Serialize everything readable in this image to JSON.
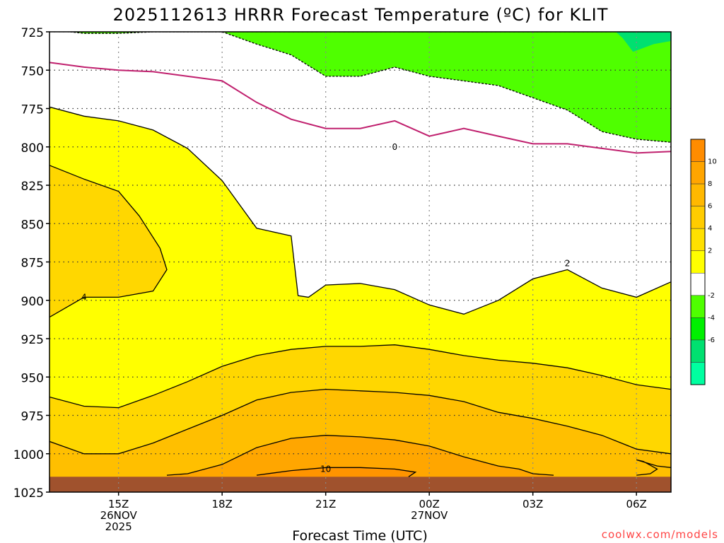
{
  "chart_data": {
    "type": "contour",
    "title": "2025112613 HRRR Forecast Temperature (ºC) for KLIT",
    "xlabel": "Forecast Time (UTC)",
    "ylabel": "",
    "credit": "coolwx.com/models",
    "y_scale": "pressure (hPa), increasing downward",
    "ylim": [
      725,
      1025
    ],
    "xlim_hours_utc": [
      13,
      31
    ],
    "grid": true,
    "y_ticks": [
      "725",
      "750",
      "775",
      "800",
      "825",
      "850",
      "875",
      "900",
      "925",
      "950",
      "975",
      "1000",
      "1025"
    ],
    "x_ticks": [
      {
        "hour": 15,
        "label": "15Z",
        "date": "26NOV",
        "year": "2025"
      },
      {
        "hour": 18,
        "label": "18Z",
        "date": "",
        "year": ""
      },
      {
        "hour": 21,
        "label": "21Z",
        "date": "",
        "year": ""
      },
      {
        "hour": 24,
        "label": "00Z",
        "date": "27NOV",
        "year": ""
      },
      {
        "hour": 27,
        "label": "03Z",
        "date": "",
        "year": ""
      },
      {
        "hour": 30,
        "label": "06Z",
        "date": "",
        "year": ""
      }
    ],
    "colorbar": {
      "labels": [
        "10",
        "8",
        "6",
        "4",
        "2",
        "-2",
        "-4",
        "-6"
      ],
      "bins": [
        {
          "color": "#ff8c00"
        },
        {
          "color": "#ffa500"
        },
        {
          "color": "#ffb800"
        },
        {
          "color": "#ffcc00"
        },
        {
          "color": "#ffe000"
        },
        {
          "color": "#ffff00"
        },
        {
          "color": "#ffffff"
        },
        {
          "color": "#4fff00"
        },
        {
          "color": "#00f000"
        },
        {
          "color": "#00e070"
        },
        {
          "color": "#00ffa0"
        }
      ]
    },
    "contour_labels": [
      {
        "text": "0",
        "hour": 23.0,
        "p": 800
      },
      {
        "text": "2",
        "hour": 28.0,
        "p": 876
      },
      {
        "text": "4",
        "hour": 14.0,
        "p": 898
      },
      {
        "text": "10",
        "hour": 21.0,
        "p": 1010
      }
    ],
    "ground_level_hpa": 1015,
    "contours": [
      {
        "level": 0,
        "style": "magenta",
        "points": [
          [
            13,
            745
          ],
          [
            14,
            748
          ],
          [
            15,
            750
          ],
          [
            16,
            751
          ],
          [
            17,
            754
          ],
          [
            18,
            757
          ],
          [
            19,
            771
          ],
          [
            20,
            782
          ],
          [
            21,
            788
          ],
          [
            22,
            788
          ],
          [
            23,
            783
          ],
          [
            24,
            793
          ],
          [
            25,
            788
          ],
          [
            26,
            793
          ],
          [
            27,
            798
          ],
          [
            28,
            798
          ],
          [
            29,
            801
          ],
          [
            30,
            804
          ],
          [
            31,
            803
          ]
        ]
      },
      {
        "level": -2,
        "style": "dashed",
        "points": [
          [
            13.6,
            725
          ],
          [
            14,
            726
          ],
          [
            15,
            726
          ],
          [
            16,
            725
          ],
          [
            17,
            725
          ],
          [
            18,
            725
          ],
          [
            19,
            733
          ],
          [
            20,
            740
          ],
          [
            21,
            754
          ],
          [
            22,
            754
          ],
          [
            23,
            748
          ],
          [
            24,
            754
          ],
          [
            25,
            757
          ],
          [
            26,
            760
          ],
          [
            27,
            768
          ],
          [
            28,
            776
          ],
          [
            29,
            790
          ],
          [
            30,
            795
          ],
          [
            31,
            797
          ]
        ]
      },
      {
        "level": 2,
        "style": "solid",
        "points": [
          [
            13,
            774
          ],
          [
            14,
            780
          ],
          [
            15,
            783
          ],
          [
            16,
            789
          ],
          [
            17,
            801
          ],
          [
            18,
            822
          ],
          [
            19,
            853
          ],
          [
            20,
            858
          ],
          [
            20.2,
            897
          ],
          [
            20.5,
            898
          ],
          [
            21,
            890
          ],
          [
            22,
            889
          ],
          [
            23,
            893
          ],
          [
            24,
            903
          ],
          [
            25,
            909
          ],
          [
            26,
            900
          ],
          [
            27,
            886
          ],
          [
            28,
            880
          ],
          [
            29,
            892
          ],
          [
            30,
            898
          ],
          [
            31,
            888
          ]
        ]
      },
      {
        "level": 4,
        "style": "solid",
        "points": [
          [
            13,
            911
          ],
          [
            14,
            898
          ],
          [
            15,
            898
          ],
          [
            16,
            894
          ],
          [
            16.4,
            880
          ],
          [
            16.2,
            866
          ],
          [
            15.6,
            845
          ],
          [
            15,
            829
          ],
          [
            14,
            821
          ],
          [
            13,
            812
          ]
        ]
      },
      {
        "level": 6,
        "style": "solid",
        "points": [
          [
            13,
            963
          ],
          [
            14,
            969
          ],
          [
            15,
            970
          ],
          [
            16,
            962
          ],
          [
            17,
            953
          ],
          [
            18,
            943
          ],
          [
            19,
            936
          ],
          [
            20,
            932
          ],
          [
            21,
            930
          ],
          [
            22,
            930
          ],
          [
            23,
            929
          ],
          [
            24,
            932
          ],
          [
            25,
            936
          ],
          [
            26,
            939
          ],
          [
            27,
            941
          ],
          [
            28,
            944
          ],
          [
            29,
            949
          ],
          [
            30,
            955
          ],
          [
            31,
            958
          ]
        ]
      },
      {
        "level": 8,
        "style": "solid",
        "points": [
          [
            13,
            992
          ],
          [
            14,
            1000
          ],
          [
            15,
            1000
          ],
          [
            16,
            993
          ],
          [
            17,
            984
          ],
          [
            18,
            975
          ],
          [
            19,
            965
          ],
          [
            20,
            960
          ],
          [
            21,
            958
          ],
          [
            22,
            959
          ],
          [
            23,
            960
          ],
          [
            24,
            962
          ],
          [
            25,
            966
          ],
          [
            26,
            973
          ],
          [
            27,
            977
          ],
          [
            28,
            982
          ],
          [
            29,
            988
          ],
          [
            30,
            997
          ],
          [
            31,
            1000
          ]
        ]
      },
      {
        "level": 10,
        "style": "solid",
        "points": [
          [
            16.4,
            1014
          ],
          [
            17,
            1013
          ],
          [
            18,
            1007
          ],
          [
            19,
            996
          ],
          [
            20,
            990
          ],
          [
            21,
            988
          ],
          [
            22,
            989
          ],
          [
            23,
            991
          ],
          [
            24,
            995
          ],
          [
            25,
            1002
          ],
          [
            26,
            1008
          ],
          [
            26.6,
            1010
          ],
          [
            27,
            1013
          ],
          [
            27.6,
            1014
          ]
        ]
      },
      {
        "level": 10,
        "style": "solid",
        "points": [
          [
            30,
            1014
          ],
          [
            30.4,
            1013
          ],
          [
            30.6,
            1010
          ],
          [
            30.2,
            1005
          ],
          [
            30,
            1004
          ],
          [
            30.6,
            1008
          ],
          [
            31,
            1009
          ]
        ]
      },
      {
        "level": 12,
        "style": "solid",
        "points": [
          [
            19,
            1014
          ],
          [
            20,
            1011
          ],
          [
            21,
            1009
          ],
          [
            22,
            1009
          ],
          [
            23,
            1010
          ],
          [
            23.6,
            1012
          ],
          [
            23.4,
            1015
          ]
        ]
      }
    ]
  }
}
